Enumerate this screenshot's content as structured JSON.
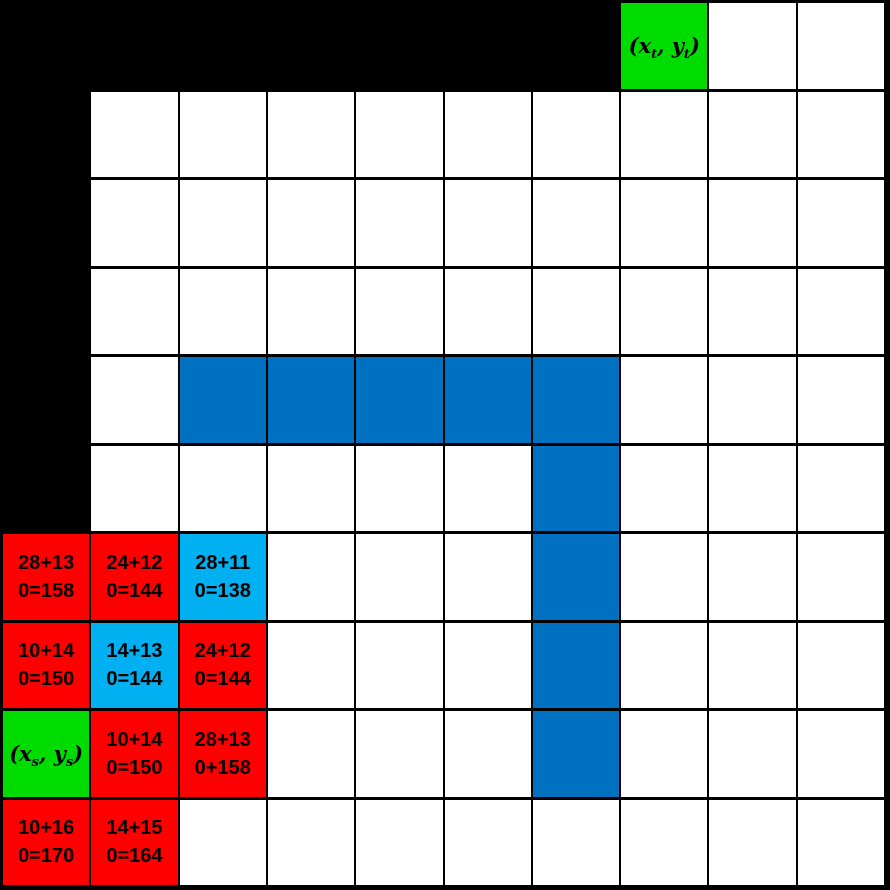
{
  "diagram_title": "grid-pathfinding-cost-diagram",
  "colors": {
    "grid_line": "#000000",
    "empty": "#FFFFFF",
    "black": "#000000",
    "obstacle": "#0070C0",
    "red": "#FF0000",
    "cyan": "#00B0F0",
    "target": "#00DC00",
    "start": "#00DC00"
  },
  "labels": {
    "target": {
      "pre": "(x",
      "sub1": "t",
      "mid": ", y",
      "sub2": "t",
      "post": ")"
    },
    "start": {
      "pre": "(x",
      "sub1": "s",
      "mid": ", y",
      "sub2": "s",
      "post": ")"
    }
  },
  "grid": {
    "rows": 10,
    "cols": 10,
    "cells": [
      {
        "row": 0,
        "col": 0,
        "kind": "black"
      },
      {
        "row": 0,
        "col": 1,
        "kind": "black"
      },
      {
        "row": 0,
        "col": 2,
        "kind": "black"
      },
      {
        "row": 0,
        "col": 3,
        "kind": "black"
      },
      {
        "row": 0,
        "col": 4,
        "kind": "black"
      },
      {
        "row": 0,
        "col": 5,
        "kind": "black"
      },
      {
        "row": 0,
        "col": 6,
        "kind": "black"
      },
      {
        "row": 0,
        "col": 7,
        "kind": "target",
        "label": "target"
      },
      {
        "row": 1,
        "col": 0,
        "kind": "black"
      },
      {
        "row": 2,
        "col": 0,
        "kind": "black"
      },
      {
        "row": 3,
        "col": 0,
        "kind": "black"
      },
      {
        "row": 4,
        "col": 0,
        "kind": "black"
      },
      {
        "row": 5,
        "col": 0,
        "kind": "black"
      },
      {
        "row": 4,
        "col": 2,
        "kind": "obstacle"
      },
      {
        "row": 4,
        "col": 3,
        "kind": "obstacle"
      },
      {
        "row": 4,
        "col": 4,
        "kind": "obstacle"
      },
      {
        "row": 4,
        "col": 5,
        "kind": "obstacle"
      },
      {
        "row": 4,
        "col": 6,
        "kind": "obstacle"
      },
      {
        "row": 5,
        "col": 6,
        "kind": "obstacle"
      },
      {
        "row": 6,
        "col": 6,
        "kind": "obstacle"
      },
      {
        "row": 7,
        "col": 6,
        "kind": "obstacle"
      },
      {
        "row": 8,
        "col": 6,
        "kind": "obstacle"
      },
      {
        "row": 6,
        "col": 0,
        "kind": "red",
        "lines": [
          "28+13",
          "0=158"
        ]
      },
      {
        "row": 6,
        "col": 1,
        "kind": "red",
        "lines": [
          "24+12",
          "0=144"
        ]
      },
      {
        "row": 6,
        "col": 2,
        "kind": "cyan",
        "lines": [
          "28+11",
          "0=138"
        ]
      },
      {
        "row": 7,
        "col": 0,
        "kind": "red",
        "lines": [
          "10+14",
          "0=150"
        ]
      },
      {
        "row": 7,
        "col": 1,
        "kind": "cyan",
        "lines": [
          "14+13",
          "0=144"
        ]
      },
      {
        "row": 7,
        "col": 2,
        "kind": "red",
        "lines": [
          "24+12",
          "0=144"
        ]
      },
      {
        "row": 8,
        "col": 0,
        "kind": "start",
        "label": "start"
      },
      {
        "row": 8,
        "col": 1,
        "kind": "red",
        "lines": [
          "10+14",
          "0=150"
        ]
      },
      {
        "row": 8,
        "col": 2,
        "kind": "red",
        "lines": [
          "28+13",
          "0+158"
        ]
      },
      {
        "row": 9,
        "col": 0,
        "kind": "red",
        "lines": [
          "10+16",
          "0=170"
        ]
      },
      {
        "row": 9,
        "col": 1,
        "kind": "red",
        "lines": [
          "14+15",
          "0=164"
        ]
      }
    ]
  }
}
